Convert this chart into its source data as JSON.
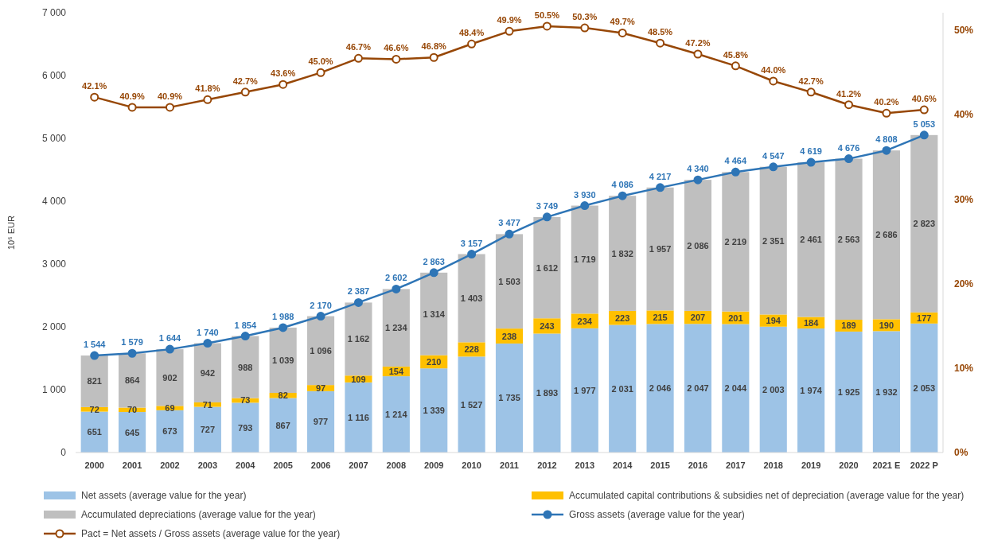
{
  "chart_data": {
    "type": "bar",
    "stacked": true,
    "ylabel": "10⁶ EUR",
    "categories": [
      "2000",
      "2001",
      "2002",
      "2003",
      "2004",
      "2005",
      "2006",
      "2007",
      "2008",
      "2009",
      "2010",
      "2011",
      "2012",
      "2013",
      "2014",
      "2015",
      "2016",
      "2017",
      "2018",
      "2019",
      "2020",
      "2021 E",
      "2022 P"
    ],
    "ylim": [
      0,
      7000
    ],
    "yticks": [
      0,
      {
        "value": 1000,
        "label": "1 000"
      },
      {
        "value": 2000,
        "label": "2 000"
      },
      {
        "value": 3000,
        "label": "3 000"
      },
      {
        "value": 4000,
        "label": "4 000"
      },
      {
        "value": 5000,
        "label": "5 000"
      },
      {
        "value": 6000,
        "label": "6 000"
      },
      {
        "value": 7000,
        "label": "7 000"
      }
    ],
    "y2lim": [
      0,
      52.1
    ],
    "y2ticks": [
      {
        "value": 0,
        "label": "0%"
      },
      {
        "value": 10,
        "label": "10%"
      },
      {
        "value": 20,
        "label": "20%"
      },
      {
        "value": 30,
        "label": "30%"
      },
      {
        "value": 40,
        "label": "40%"
      },
      {
        "value": 50,
        "label": "50%"
      }
    ],
    "legend": "bottom",
    "series": [
      {
        "name": "Net assets (average value for the year)",
        "color": "#9dc3e6",
        "values": [
          651,
          645,
          673,
          727,
          793,
          867,
          977,
          1116,
          1214,
          1339,
          1527,
          1735,
          1893,
          1977,
          2031,
          2046,
          2047,
          2044,
          2003,
          1974,
          1925,
          1932,
          2053
        ],
        "value_labels": [
          "651",
          "645",
          "673",
          "727",
          "793",
          "867",
          "977",
          "1 116",
          "1 214",
          "1 339",
          "1 527",
          "1 735",
          "1 893",
          "1 977",
          "2 031",
          "2 046",
          "2 047",
          "2 044",
          "2 003",
          "1 974",
          "1 925",
          "1 932",
          "2 053"
        ]
      },
      {
        "name": "Accumulated capital contributions & subsidies net of depreciation (average value for the year)",
        "color": "#ffc000",
        "values": [
          72,
          70,
          69,
          71,
          73,
          82,
          97,
          109,
          154,
          210,
          228,
          238,
          243,
          234,
          223,
          215,
          207,
          201,
          194,
          184,
          189,
          190,
          177
        ],
        "value_labels": [
          "72",
          "70",
          "69",
          "71",
          "73",
          "82",
          "97",
          "109",
          "154",
          "210",
          "228",
          "238",
          "243",
          "234",
          "223",
          "215",
          "207",
          "201",
          "194",
          "184",
          "189",
          "190",
          "177"
        ]
      },
      {
        "name": "Accumulated depreciations (average value for the year)",
        "color": "#bfbfbf",
        "values": [
          821,
          864,
          902,
          942,
          988,
          1039,
          1096,
          1162,
          1234,
          1314,
          1403,
          1503,
          1612,
          1719,
          1832,
          1957,
          2086,
          2219,
          2351,
          2461,
          2563,
          2686,
          2823
        ],
        "value_labels": [
          "821",
          "864",
          "902",
          "942",
          "988",
          "1 039",
          "1 096",
          "1 162",
          "1 234",
          "1 314",
          "1 403",
          "1 503",
          "1 612",
          "1 719",
          "1 832",
          "1 957",
          "2 086",
          "2 219",
          "2 351",
          "2 461",
          "2 563",
          "2 686",
          "2 823"
        ]
      },
      {
        "name": "Gross assets (average value for the year)",
        "type": "line",
        "marker": "circle",
        "color": "#2e75b6",
        "values": [
          1544,
          1579,
          1644,
          1740,
          1854,
          1988,
          2170,
          2387,
          2602,
          2863,
          3157,
          3477,
          3749,
          3930,
          4086,
          4217,
          4340,
          4464,
          4547,
          4619,
          4676,
          4808,
          5053
        ],
        "value_labels": [
          "1 544",
          "1 579",
          "1 644",
          "1 740",
          "1 854",
          "1 988",
          "2 170",
          "2 387",
          "2 602",
          "2 863",
          "3 157",
          "3 477",
          "3 749",
          "3 930",
          "4 086",
          "4 217",
          "4 340",
          "4 464",
          "4 547",
          "4 619",
          "4 676",
          "4 808",
          "5 053"
        ]
      },
      {
        "name": "Pact = Net assets / Gross assets (average value for the year)",
        "type": "line",
        "axis": "y2",
        "marker": "circle",
        "color": "#974706",
        "values": [
          42.1,
          40.9,
          40.9,
          41.8,
          42.7,
          43.6,
          45.0,
          46.7,
          46.6,
          46.8,
          48.4,
          49.9,
          50.5,
          50.3,
          49.7,
          48.5,
          47.2,
          45.8,
          44.0,
          42.7,
          41.2,
          40.2,
          40.6
        ],
        "value_labels": [
          "42.1%",
          "40.9%",
          "40.9%",
          "41.8%",
          "42.7%",
          "43.6%",
          "45.0%",
          "46.7%",
          "46.6%",
          "46.8%",
          "48.4%",
          "49.9%",
          "50.5%",
          "50.3%",
          "49.7%",
          "48.5%",
          "47.2%",
          "45.8%",
          "44.0%",
          "42.7%",
          "41.2%",
          "40.2%",
          "40.6%"
        ]
      }
    ]
  }
}
